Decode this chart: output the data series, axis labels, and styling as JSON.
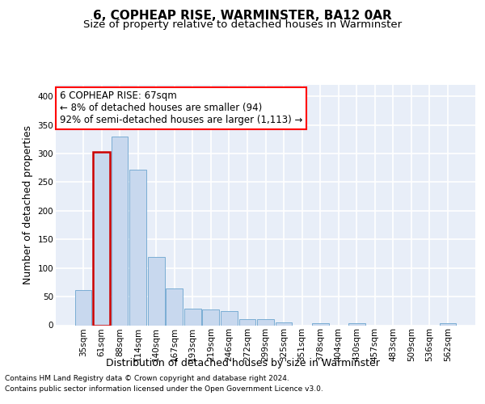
{
  "title": "6, COPHEAP RISE, WARMINSTER, BA12 0AR",
  "subtitle": "Size of property relative to detached houses in Warminster",
  "xlabel": "Distribution of detached houses by size in Warminster",
  "ylabel": "Number of detached properties",
  "bar_color": "#c8d8ee",
  "bar_edge_color": "#7aadd4",
  "highlight_bar_index": 1,
  "highlight_edge_color": "#cc0000",
  "categories": [
    "35sqm",
    "61sqm",
    "88sqm",
    "114sqm",
    "140sqm",
    "167sqm",
    "193sqm",
    "219sqm",
    "246sqm",
    "272sqm",
    "299sqm",
    "325sqm",
    "351sqm",
    "378sqm",
    "404sqm",
    "430sqm",
    "457sqm",
    "483sqm",
    "509sqm",
    "536sqm",
    "562sqm"
  ],
  "values": [
    62,
    303,
    330,
    272,
    120,
    64,
    29,
    28,
    25,
    11,
    11,
    5,
    0,
    4,
    0,
    3,
    0,
    0,
    0,
    0,
    3
  ],
  "annotation_text_line1": "6 COPHEAP RISE: 67sqm",
  "annotation_text_line2": "← 8% of detached houses are smaller (94)",
  "annotation_text_line3": "92% of semi-detached houses are larger (1,113) →",
  "footer_lines": [
    "Contains HM Land Registry data © Crown copyright and database right 2024.",
    "Contains public sector information licensed under the Open Government Licence v3.0."
  ],
  "ylim": [
    0,
    420
  ],
  "yticks": [
    0,
    50,
    100,
    150,
    200,
    250,
    300,
    350,
    400
  ],
  "bg_color": "#e8eef8",
  "grid_color": "#ffffff",
  "title_fontsize": 11,
  "subtitle_fontsize": 9.5,
  "tick_fontsize": 7.5,
  "ylabel_fontsize": 9,
  "xlabel_fontsize": 9,
  "annotation_fontsize": 8.5
}
